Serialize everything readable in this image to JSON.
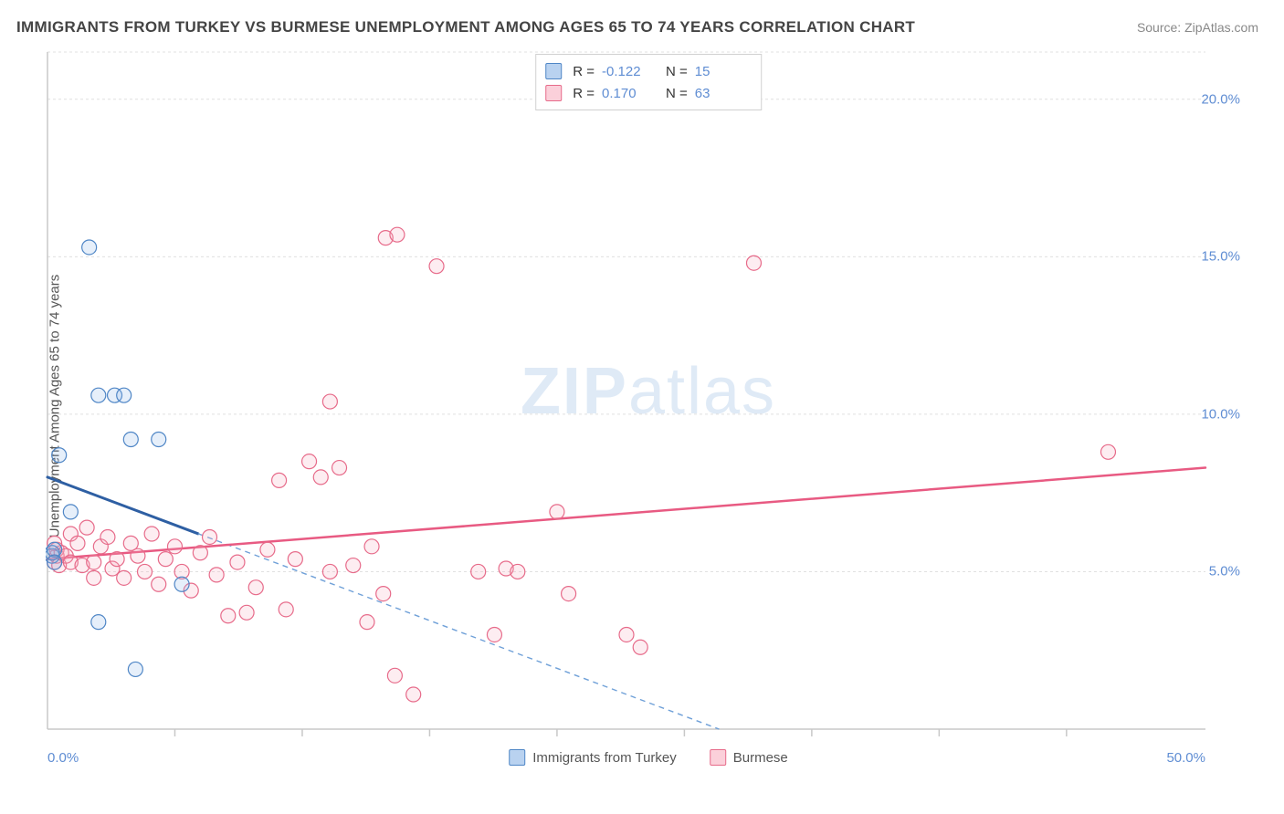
{
  "title": "IMMIGRANTS FROM TURKEY VS BURMESE UNEMPLOYMENT AMONG AGES 65 TO 74 YEARS CORRELATION CHART",
  "source": "Source: ZipAtlas.com",
  "ylabel": "Unemployment Among Ages 65 to 74 years",
  "watermark": {
    "bold": "ZIP",
    "rest": "atlas"
  },
  "chart": {
    "type": "scatter",
    "background_color": "#ffffff",
    "grid_color": "#e0e0e0",
    "axis_color": "#c8c8c8",
    "tick_color": "#c8c8c8",
    "xlim": [
      0,
      50
    ],
    "ylim": [
      0,
      21.5
    ],
    "ytick_values": [
      5,
      10,
      15,
      20
    ],
    "ytick_labels": [
      "5.0%",
      "10.0%",
      "15.0%",
      "20.0%"
    ],
    "xtick_major": [
      0,
      50
    ],
    "xtick_major_labels": [
      "0.0%",
      "50.0%"
    ],
    "xtick_minor": [
      5.5,
      11,
      16.5,
      22,
      27.5,
      33,
      38.5,
      44
    ],
    "point_radius": 8,
    "point_stroke_width": 1.2,
    "point_fill_opacity": 0.22,
    "series": [
      {
        "name": "Immigrants from Turkey",
        "color_fill": "#8fb8e8",
        "color_stroke": "#4f86c6",
        "R": "-0.122",
        "N": "15",
        "regression": {
          "x1": 0,
          "y1": 8.0,
          "x2": 29,
          "y2": 0,
          "solid_until_x": 6.5,
          "solid_color": "#2e5fa3",
          "solid_width": 3,
          "dash_color": "#6fa0d8",
          "dash_width": 1.4,
          "dash_pattern": "6 5"
        },
        "points": [
          [
            0.2,
            5.5
          ],
          [
            0.2,
            5.6
          ],
          [
            0.3,
            5.7
          ],
          [
            0.3,
            5.3
          ],
          [
            0.5,
            8.7
          ],
          [
            1.0,
            6.9
          ],
          [
            1.8,
            15.3
          ],
          [
            2.2,
            10.6
          ],
          [
            2.9,
            10.6
          ],
          [
            3.3,
            10.6
          ],
          [
            3.6,
            9.2
          ],
          [
            4.8,
            9.2
          ],
          [
            2.2,
            3.4
          ],
          [
            3.8,
            1.9
          ],
          [
            5.8,
            4.6
          ]
        ]
      },
      {
        "name": "Burmese",
        "color_fill": "#f4aebe",
        "color_stroke": "#e76b8a",
        "R": "0.170",
        "N": "63",
        "regression": {
          "x1": 0,
          "y1": 5.4,
          "x2": 50,
          "y2": 8.3,
          "solid_until_x": 50,
          "solid_color": "#e85a82",
          "solid_width": 2.5,
          "dash_color": "#e85a82",
          "dash_width": 0,
          "dash_pattern": ""
        },
        "points": [
          [
            0.3,
            5.3
          ],
          [
            0.4,
            5.5
          ],
          [
            0.4,
            5.7
          ],
          [
            0.5,
            5.2
          ],
          [
            0.6,
            5.6
          ],
          [
            0.8,
            5.5
          ],
          [
            1.0,
            5.3
          ],
          [
            1.0,
            6.2
          ],
          [
            1.3,
            5.9
          ],
          [
            1.5,
            5.2
          ],
          [
            1.7,
            6.4
          ],
          [
            2.0,
            5.3
          ],
          [
            2.0,
            4.8
          ],
          [
            2.3,
            5.8
          ],
          [
            2.6,
            6.1
          ],
          [
            2.8,
            5.1
          ],
          [
            3.0,
            5.4
          ],
          [
            3.3,
            4.8
          ],
          [
            3.6,
            5.9
          ],
          [
            3.9,
            5.5
          ],
          [
            4.2,
            5.0
          ],
          [
            4.5,
            6.2
          ],
          [
            4.8,
            4.6
          ],
          [
            5.1,
            5.4
          ],
          [
            5.5,
            5.8
          ],
          [
            5.8,
            5.0
          ],
          [
            6.2,
            4.4
          ],
          [
            6.6,
            5.6
          ],
          [
            7.0,
            6.1
          ],
          [
            7.3,
            4.9
          ],
          [
            7.8,
            3.6
          ],
          [
            8.2,
            5.3
          ],
          [
            8.6,
            3.7
          ],
          [
            9.0,
            4.5
          ],
          [
            9.5,
            5.7
          ],
          [
            10.0,
            7.9
          ],
          [
            10.3,
            3.8
          ],
          [
            10.7,
            5.4
          ],
          [
            11.3,
            8.5
          ],
          [
            11.8,
            8.0
          ],
          [
            12.2,
            5.0
          ],
          [
            12.2,
            10.4
          ],
          [
            12.6,
            8.3
          ],
          [
            13.2,
            5.2
          ],
          [
            13.8,
            3.4
          ],
          [
            14.0,
            5.8
          ],
          [
            14.5,
            4.3
          ],
          [
            14.6,
            15.6
          ],
          [
            15.0,
            1.7
          ],
          [
            15.1,
            15.7
          ],
          [
            15.8,
            1.1
          ],
          [
            16.8,
            14.7
          ],
          [
            18.6,
            5.0
          ],
          [
            19.3,
            3.0
          ],
          [
            19.8,
            5.1
          ],
          [
            20.3,
            5.0
          ],
          [
            22.0,
            6.9
          ],
          [
            22.5,
            4.3
          ],
          [
            25.0,
            3.0
          ],
          [
            25.6,
            2.6
          ],
          [
            30.5,
            14.8
          ],
          [
            45.8,
            8.8
          ],
          [
            0.3,
            5.9
          ]
        ]
      }
    ],
    "xlegend": [
      {
        "swatch_fill": "#b9d2f0",
        "swatch_stroke": "#4f86c6",
        "label": "Immigrants from Turkey"
      },
      {
        "swatch_fill": "#fbd0da",
        "swatch_stroke": "#e76b8a",
        "label": "Burmese"
      }
    ]
  }
}
